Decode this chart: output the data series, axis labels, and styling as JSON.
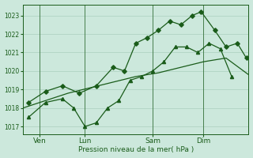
{
  "background_color": "#cce8dc",
  "grid_color": "#aacfbf",
  "line_color": "#1a5c1a",
  "xlabel": "Pression niveau de la mer( hPa )",
  "yticks": [
    1017,
    1018,
    1019,
    1020,
    1021,
    1022,
    1023
  ],
  "ylim": [
    1016.6,
    1023.6
  ],
  "xlim": [
    0,
    20
  ],
  "xtick_labels": [
    "Ven",
    "Lun",
    "Sam",
    "Dim"
  ],
  "xtick_positions": [
    1.5,
    5.5,
    11.5,
    16.0
  ],
  "vline_positions": [
    1.5,
    5.5,
    11.5,
    16.0
  ],
  "series_smooth": {
    "x": [
      0,
      2,
      4,
      6,
      8,
      10,
      12,
      14,
      16,
      18,
      20
    ],
    "y": [
      1018.0,
      1018.4,
      1018.8,
      1019.1,
      1019.4,
      1019.7,
      1019.9,
      1020.2,
      1020.5,
      1020.7,
      1019.8
    ]
  },
  "series_diamond": {
    "x": [
      0.5,
      2.0,
      3.5,
      5.0,
      6.5,
      8.0,
      9.0,
      10.0,
      11.0,
      12.0,
      13.0,
      14.0,
      15.0,
      15.8,
      17.0,
      18.0,
      19.0,
      19.8
    ],
    "y": [
      1018.3,
      1018.9,
      1019.2,
      1018.8,
      1019.2,
      1020.2,
      1020.0,
      1021.5,
      1021.8,
      1022.2,
      1022.7,
      1022.5,
      1023.0,
      1023.2,
      1022.2,
      1021.3,
      1021.5,
      1020.7
    ]
  },
  "series_triangle": {
    "x": [
      0.5,
      2.0,
      3.5,
      4.5,
      5.5,
      6.5,
      7.5,
      8.5,
      9.5,
      10.5,
      11.5,
      12.5,
      13.5,
      14.5,
      15.5,
      16.5,
      17.5,
      18.5
    ],
    "y": [
      1017.5,
      1018.3,
      1018.5,
      1018.0,
      1017.0,
      1017.2,
      1018.0,
      1018.4,
      1019.5,
      1019.7,
      1020.0,
      1020.5,
      1021.3,
      1021.3,
      1021.0,
      1021.5,
      1021.2,
      1019.7
    ]
  }
}
